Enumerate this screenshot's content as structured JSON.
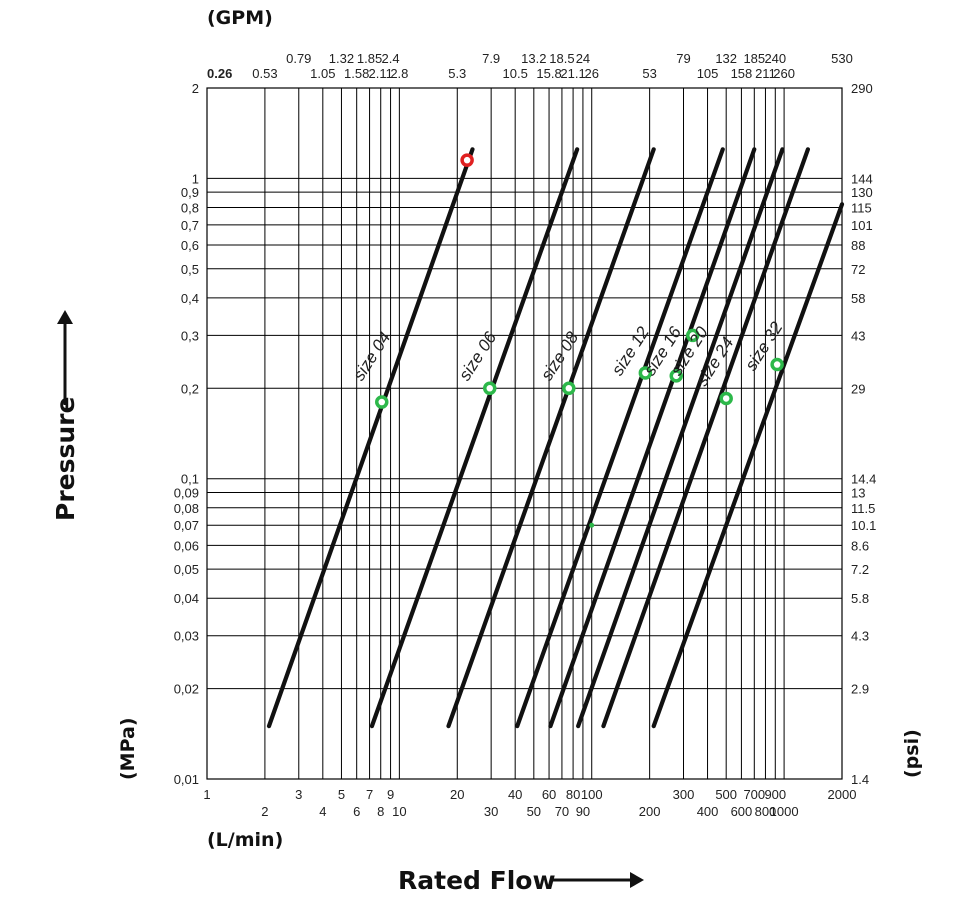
{
  "chart_data": {
    "type": "line",
    "scale": {
      "x": "log",
      "y": "log"
    },
    "xlim": [
      1,
      2000
    ],
    "ylim": [
      0.01,
      2
    ],
    "grid": true,
    "x_unit_label": "(L/min)",
    "x_top_unit_label": "(GPM)",
    "y_unit_label": "(MPa)",
    "y_right_unit_label": "(psi)",
    "xlabel": "Rated Flow",
    "ylabel": "Pressure",
    "x_ticks_row1": [
      {
        "v": 1,
        "t": "1"
      },
      {
        "v": 3,
        "t": "3"
      },
      {
        "v": 5,
        "t": "5"
      },
      {
        "v": 7,
        "t": "7"
      },
      {
        "v": 9,
        "t": "9"
      },
      {
        "v": 20,
        "t": "20"
      },
      {
        "v": 40,
        "t": "40"
      },
      {
        "v": 60,
        "t": "60"
      },
      {
        "v": 80,
        "t": "80"
      },
      {
        "v": 100,
        "t": "100"
      },
      {
        "v": 300,
        "t": "300"
      },
      {
        "v": 500,
        "t": "500"
      },
      {
        "v": 700,
        "t": "700"
      },
      {
        "v": 900,
        "t": "900"
      },
      {
        "v": 2000,
        "t": "2000"
      }
    ],
    "x_ticks_row2": [
      {
        "v": 2,
        "t": "2"
      },
      {
        "v": 4,
        "t": "4"
      },
      {
        "v": 6,
        "t": "6"
      },
      {
        "v": 8,
        "t": "8"
      },
      {
        "v": 10,
        "t": "10"
      },
      {
        "v": 30,
        "t": "30"
      },
      {
        "v": 50,
        "t": "50"
      },
      {
        "v": 70,
        "t": "70"
      },
      {
        "v": 90,
        "t": "90"
      },
      {
        "v": 200,
        "t": "200"
      },
      {
        "v": 400,
        "t": "400"
      },
      {
        "v": 600,
        "t": "600"
      },
      {
        "v": 800,
        "t": "800"
      },
      {
        "v": 1000,
        "t": "1000"
      }
    ],
    "gpm_ticks_row1": [
      {
        "v": 3,
        "t": "0.79"
      },
      {
        "v": 5,
        "t": "1.32"
      },
      {
        "v": 7,
        "t": "1.85"
      },
      {
        "v": 9,
        "t": "2.4"
      },
      {
        "v": 30,
        "t": "7.9"
      },
      {
        "v": 50,
        "t": "13.2"
      },
      {
        "v": 70,
        "t": "18.5"
      },
      {
        "v": 90,
        "t": "24"
      },
      {
        "v": 300,
        "t": "79"
      },
      {
        "v": 500,
        "t": "132"
      },
      {
        "v": 700,
        "t": "185"
      },
      {
        "v": 900,
        "t": "240"
      },
      {
        "v": 2000,
        "t": "530"
      }
    ],
    "gpm_ticks_row2": [
      {
        "v": 1,
        "t": "0.26"
      },
      {
        "v": 2,
        "t": "0.53"
      },
      {
        "v": 4,
        "t": "1.05"
      },
      {
        "v": 6,
        "t": "1.58"
      },
      {
        "v": 8,
        "t": "2.11"
      },
      {
        "v": 10,
        "t": "2.8"
      },
      {
        "v": 20,
        "t": "5.3"
      },
      {
        "v": 40,
        "t": "10.5"
      },
      {
        "v": 60,
        "t": "15.8"
      },
      {
        "v": 80,
        "t": "21.1"
      },
      {
        "v": 100,
        "t": "26"
      },
      {
        "v": 200,
        "t": "53"
      },
      {
        "v": 400,
        "t": "105"
      },
      {
        "v": 600,
        "t": "158"
      },
      {
        "v": 800,
        "t": "211"
      },
      {
        "v": 1000,
        "t": "260"
      }
    ],
    "y_ticks": [
      {
        "v": 2,
        "t": "2",
        "psi": "290"
      },
      {
        "v": 1,
        "t": "1",
        "psi": "144"
      },
      {
        "v": 0.9,
        "t": "0,9",
        "psi": "130"
      },
      {
        "v": 0.8,
        "t": "0,8",
        "psi": "115"
      },
      {
        "v": 0.7,
        "t": "0,7",
        "psi": "101"
      },
      {
        "v": 0.6,
        "t": "0,6",
        "psi": "88"
      },
      {
        "v": 0.5,
        "t": "0,5",
        "psi": "72"
      },
      {
        "v": 0.4,
        "t": "0,4",
        "psi": "58"
      },
      {
        "v": 0.3,
        "t": "0,3",
        "psi": "43"
      },
      {
        "v": 0.2,
        "t": "0,2",
        "psi": "29"
      },
      {
        "v": 0.1,
        "t": "0,1",
        "psi": "14.4"
      },
      {
        "v": 0.09,
        "t": "0,09",
        "psi": "13"
      },
      {
        "v": 0.08,
        "t": "0,08",
        "psi": "11.5"
      },
      {
        "v": 0.07,
        "t": "0,07",
        "psi": "10.1"
      },
      {
        "v": 0.06,
        "t": "0,06",
        "psi": "8.6"
      },
      {
        "v": 0.05,
        "t": "0,05",
        "psi": "7.2"
      },
      {
        "v": 0.04,
        "t": "0,04",
        "psi": "5.8"
      },
      {
        "v": 0.03,
        "t": "0,03",
        "psi": "4.3"
      },
      {
        "v": 0.02,
        "t": "0,02",
        "psi": "2.9"
      },
      {
        "v": 0.01,
        "t": "0,01",
        "psi": "1.4"
      }
    ],
    "series": [
      {
        "name": "size 04",
        "points": [
          [
            2.1,
            0.015
          ],
          [
            24,
            1.25
          ]
        ],
        "marker": [
          8.1,
          0.18
        ],
        "label_at": [
          7.6,
          0.25
        ]
      },
      {
        "name": "size 06",
        "points": [
          [
            7.2,
            0.015
          ],
          [
            84,
            1.25
          ]
        ],
        "marker": [
          29.5,
          0.2
        ],
        "label_at": [
          27,
          0.25
        ]
      },
      {
        "name": "size 08",
        "points": [
          [
            18,
            0.015
          ],
          [
            210,
            1.25
          ]
        ],
        "marker": [
          76,
          0.2
        ],
        "label_at": [
          72,
          0.25
        ]
      },
      {
        "name": "size 12",
        "points": [
          [
            41,
            0.015
          ],
          [
            480,
            1.25
          ]
        ],
        "marker": [
          190,
          0.225
        ],
        "label_at": [
          168,
          0.26
        ]
      },
      {
        "name": "size 16",
        "points": [
          [
            61,
            0.015
          ],
          [
            700,
            1.25
          ]
        ],
        "marker": [
          275,
          0.22
        ],
        "label_at": [
          247,
          0.26
        ]
      },
      {
        "name": "size 20",
        "points": [
          [
            85,
            0.015
          ],
          [
            980,
            1.25
          ]
        ],
        "marker": [
          335,
          0.3
        ],
        "label_at": [
          340,
          0.26
        ]
      },
      {
        "name": "size 24",
        "points": [
          [
            115,
            0.015
          ],
          [
            1330,
            1.25
          ]
        ],
        "marker": [
          500,
          0.185
        ],
        "label_at": [
          462,
          0.24
        ]
      },
      {
        "name": "size 32",
        "points": [
          [
            210,
            0.015
          ],
          [
            2000,
            0.82
          ]
        ],
        "marker": [
          920,
          0.24
        ],
        "label_at": [
          830,
          0.27
        ]
      }
    ],
    "extra_points": [
      {
        "x": 22.5,
        "y": 1.15,
        "color": "#e02020"
      },
      {
        "x": 100,
        "y": 0.07,
        "color": "#2db84a",
        "small": true
      }
    ],
    "colors": {
      "line": "#111111",
      "grid": "#000000",
      "marker_green": "#2db84a",
      "marker_red": "#e02020"
    }
  }
}
